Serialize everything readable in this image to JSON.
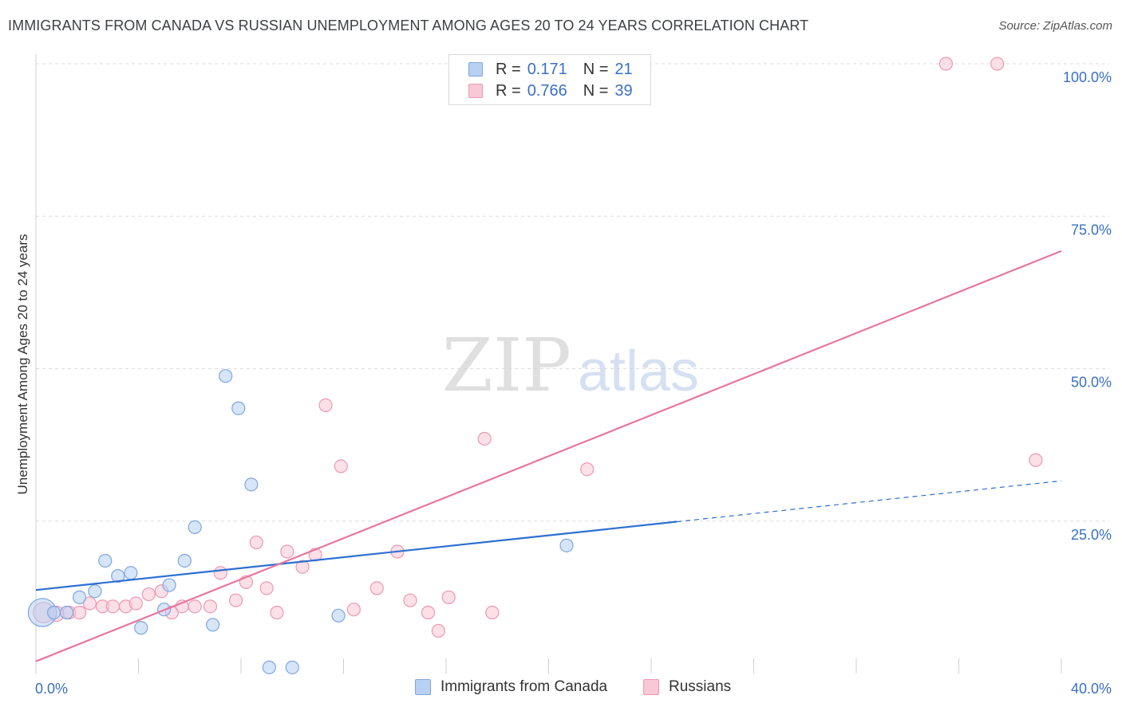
{
  "title": "IMMIGRANTS FROM CANADA VS RUSSIAN UNEMPLOYMENT AMONG AGES 20 TO 24 YEARS CORRELATION CHART",
  "source": "Source: ZipAtlas.com",
  "watermark": {
    "zip": "ZIP",
    "atlas": "atlas"
  },
  "colors": {
    "blue_fill": "#b7d0f4",
    "blue_stroke": "#7ea6de",
    "blue_line": "#2c6fd1",
    "pink_fill": "#f9c7d6",
    "pink_stroke": "#ec98b3",
    "pink_line": "#e8769d",
    "value_text": "#3a6fc4",
    "grid": "#dcdcdc"
  },
  "legend": {
    "rows": [
      {
        "r_label": "R =",
        "r_value": "0.171",
        "n_label": "N =",
        "n_value": "21"
      },
      {
        "r_label": "R =",
        "r_value": "0.766",
        "n_label": "N =",
        "n_value": "39"
      }
    ]
  },
  "bottom_legend": {
    "series1": "Immigrants from Canada",
    "series2": "Russians"
  },
  "chart_data": {
    "type": "scatter",
    "title": "IMMIGRANTS FROM CANADA VS RUSSIAN UNEMPLOYMENT AMONG AGES 20 TO 24 YEARS CORRELATION CHART",
    "xlabel": "",
    "ylabel": "Unemployment Among Ages 20 to 24 years",
    "xlim": [
      0,
      40
    ],
    "ylim": [
      0,
      100
    ],
    "x_tick_labels": [
      "0.0%",
      "40.0%"
    ],
    "y_tick_values": [
      25,
      50,
      75,
      100
    ],
    "y_tick_labels": [
      "25.0%",
      "50.0%",
      "75.0%",
      "100.0%"
    ],
    "series": [
      {
        "name": "Immigrants from Canada",
        "r": 0.171,
        "n": 21,
        "points": [
          [
            0.25,
            10.0,
            2.2
          ],
          [
            0.7,
            10.0,
            1.0
          ],
          [
            1.2,
            10.0,
            1.0
          ],
          [
            1.7,
            12.5,
            1.0
          ],
          [
            2.3,
            13.5,
            1.0
          ],
          [
            2.7,
            18.5,
            1.0
          ],
          [
            3.2,
            16.0,
            1.0
          ],
          [
            3.7,
            16.5,
            1.0
          ],
          [
            4.1,
            7.5,
            1.0
          ],
          [
            5.0,
            10.5,
            1.0
          ],
          [
            5.2,
            14.5,
            1.0
          ],
          [
            5.8,
            18.5,
            1.0
          ],
          [
            6.2,
            24.0,
            1.0
          ],
          [
            6.9,
            8.0,
            1.0
          ],
          [
            7.4,
            48.8,
            1.0
          ],
          [
            7.9,
            43.5,
            1.0
          ],
          [
            8.4,
            31.0,
            1.0
          ],
          [
            9.1,
            1.0,
            1.0
          ],
          [
            10.0,
            1.0,
            1.0
          ],
          [
            11.8,
            9.5,
            1.0
          ],
          [
            20.7,
            21.0,
            1.0
          ]
        ],
        "trend_solid": [
          [
            0,
            13.7
          ],
          [
            25.0,
            24.9
          ]
        ],
        "trend_dashed": [
          [
            25.0,
            24.9
          ],
          [
            40.0,
            31.6
          ]
        ]
      },
      {
        "name": "Russians",
        "r": 0.766,
        "n": 39,
        "points": [
          [
            0.3,
            10.0,
            1.6
          ],
          [
            0.8,
            9.8,
            1.2
          ],
          [
            1.3,
            10.0,
            1.0
          ],
          [
            1.7,
            10.0,
            1.0
          ],
          [
            2.1,
            11.5,
            1.0
          ],
          [
            2.6,
            11.0,
            1.0
          ],
          [
            3.0,
            11.0,
            1.0
          ],
          [
            3.5,
            11.0,
            1.0
          ],
          [
            3.9,
            11.5,
            1.0
          ],
          [
            4.4,
            13.0,
            1.0
          ],
          [
            4.9,
            13.5,
            1.0
          ],
          [
            5.3,
            10.0,
            1.0
          ],
          [
            5.7,
            11.0,
            1.0
          ],
          [
            6.2,
            11.0,
            1.0
          ],
          [
            6.8,
            11.0,
            1.0
          ],
          [
            7.2,
            16.5,
            1.0
          ],
          [
            7.8,
            12.0,
            1.0
          ],
          [
            8.2,
            15.0,
            1.0
          ],
          [
            8.6,
            21.5,
            1.0
          ],
          [
            9.0,
            14.0,
            1.0
          ],
          [
            9.4,
            10.0,
            1.0
          ],
          [
            9.8,
            20.0,
            1.0
          ],
          [
            10.4,
            17.5,
            1.0
          ],
          [
            10.9,
            19.5,
            1.0
          ],
          [
            11.3,
            44.0,
            1.0
          ],
          [
            11.9,
            34.0,
            1.0
          ],
          [
            12.4,
            10.5,
            1.0
          ],
          [
            13.3,
            14.0,
            1.0
          ],
          [
            14.1,
            20.0,
            1.0
          ],
          [
            14.6,
            12.0,
            1.0
          ],
          [
            15.3,
            10.0,
            1.0
          ],
          [
            15.7,
            7.0,
            1.0
          ],
          [
            16.1,
            12.5,
            1.0
          ],
          [
            17.5,
            38.5,
            1.0
          ],
          [
            17.8,
            10.0,
            1.0
          ],
          [
            21.5,
            33.5,
            1.0
          ],
          [
            35.5,
            100.0,
            1.0
          ],
          [
            37.5,
            100.0,
            1.0
          ],
          [
            39.0,
            35.0,
            1.0
          ]
        ],
        "trend_solid": [
          [
            0,
            2.0
          ],
          [
            40.0,
            69.3
          ]
        ]
      }
    ]
  }
}
